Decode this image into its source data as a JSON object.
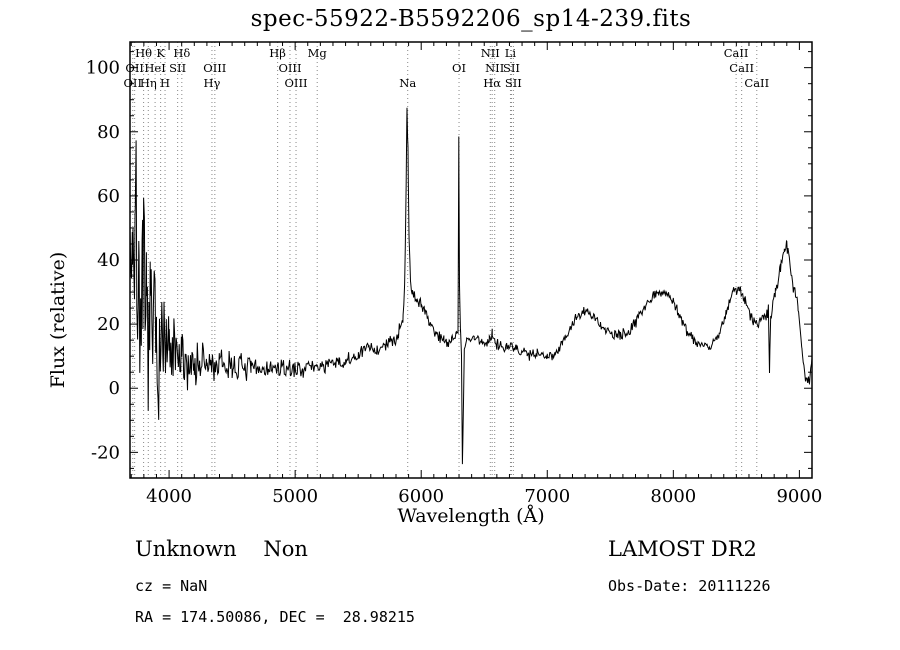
{
  "title": "spec-55922-B5592206_sp14-239.fits",
  "axes": {
    "xlabel": "Wavelength (Å)",
    "ylabel": "Flux (relative)",
    "x_range": [
      3690,
      9100
    ],
    "y_range": [
      -28,
      108
    ],
    "x_ticks": [
      4000,
      5000,
      6000,
      7000,
      8000,
      9000
    ],
    "y_ticks": [
      -20,
      0,
      20,
      40,
      60,
      80,
      100
    ]
  },
  "annotations": {
    "class_label": "Unknown    Non",
    "survey": "LAMOST DR2",
    "cz": "cz = NaN",
    "obs_date": "Obs-Date: 20111226",
    "radec": "RA = 174.50086, DEC =  28.98215"
  },
  "chart_data": {
    "type": "line",
    "title": "spec-55922-B5592206_sp14-239.fits",
    "xlabel": "Wavelength (Å)",
    "ylabel": "Flux (relative)",
    "xlim": [
      3690,
      9100
    ],
    "ylim": [
      -28,
      108
    ],
    "grid": false,
    "line_color": "#000000",
    "marker_line_color": "#888888",
    "sample_step": 6,
    "seed": 7,
    "spectral_lines": [
      {
        "label": "Hθ",
        "wavelength": 3798,
        "row": 0
      },
      {
        "label": "K",
        "wavelength": 3933,
        "row": 0
      },
      {
        "label": "Hδ",
        "wavelength": 4101,
        "row": 0
      },
      {
        "label": "Hβ",
        "wavelength": 4861,
        "row": 0
      },
      {
        "label": "Mg",
        "wavelength": 5175,
        "row": 0
      },
      {
        "label": "NII",
        "wavelength": 6548,
        "row": 0
      },
      {
        "label": "Li",
        "wavelength": 6708,
        "row": 0
      },
      {
        "label": "CaII",
        "wavelength": 8498,
        "row": 0
      },
      {
        "label": "OII",
        "wavelength": 3727,
        "row": 1
      },
      {
        "label": "HeI",
        "wavelength": 3889,
        "row": 1
      },
      {
        "label": "SII",
        "wavelength": 4068,
        "row": 1
      },
      {
        "label": "OIII",
        "wavelength": 4363,
        "row": 1
      },
      {
        "label": "OIII",
        "wavelength": 4959,
        "row": 1
      },
      {
        "label": "OI",
        "wavelength": 6300,
        "row": 1
      },
      {
        "label": "NII",
        "wavelength": 6583,
        "row": 1
      },
      {
        "label": "SII",
        "wavelength": 6716,
        "row": 1
      },
      {
        "label": "CaII",
        "wavelength": 8542,
        "row": 1
      },
      {
        "label": "OII",
        "wavelength": 3712,
        "row": 2
      },
      {
        "label": "Hη",
        "wavelength": 3835,
        "row": 2
      },
      {
        "label": "H",
        "wavelength": 3968,
        "row": 2
      },
      {
        "label": "Hγ",
        "wavelength": 4340,
        "row": 2
      },
      {
        "label": "OIII",
        "wavelength": 5007,
        "row": 2
      },
      {
        "label": "Na",
        "wavelength": 5893,
        "row": 2
      },
      {
        "label": "Hα",
        "wavelength": 6563,
        "row": 2
      },
      {
        "label": "SII",
        "wavelength": 6731,
        "row": 2
      },
      {
        "label": "CaII",
        "wavelength": 8662,
        "row": 2
      }
    ],
    "envelope_points": [
      [
        3690,
        45
      ],
      [
        3710,
        50
      ],
      [
        3730,
        45
      ],
      [
        3760,
        35
      ],
      [
        3790,
        25
      ],
      [
        3820,
        20
      ],
      [
        3850,
        18
      ],
      [
        3900,
        15
      ],
      [
        3950,
        12
      ],
      [
        4000,
        10
      ],
      [
        4100,
        8
      ],
      [
        4200,
        8
      ],
      [
        4300,
        7
      ],
      [
        4400,
        7
      ],
      [
        4500,
        7
      ],
      [
        4650,
        6
      ],
      [
        4800,
        6
      ],
      [
        5000,
        6
      ],
      [
        5200,
        7
      ],
      [
        5400,
        8
      ],
      [
        5500,
        10
      ],
      [
        5580,
        13
      ],
      [
        5650,
        12
      ],
      [
        5750,
        14
      ],
      [
        5820,
        17
      ],
      [
        5855,
        22
      ],
      [
        5870,
        35
      ],
      [
        5880,
        62
      ],
      [
        5887,
        87
      ],
      [
        5895,
        75
      ],
      [
        5903,
        48
      ],
      [
        5915,
        33
      ],
      [
        5930,
        30
      ],
      [
        5960,
        28
      ],
      [
        6000,
        26
      ],
      [
        6060,
        21
      ],
      [
        6120,
        17
      ],
      [
        6180,
        15
      ],
      [
        6240,
        15
      ],
      [
        6280,
        17
      ],
      [
        6292,
        18
      ],
      [
        6298,
        78
      ],
      [
        6304,
        32
      ],
      [
        6312,
        18
      ],
      [
        6320,
        10
      ],
      [
        6327,
        -24
      ],
      [
        6334,
        -8
      ],
      [
        6342,
        12
      ],
      [
        6360,
        15
      ],
      [
        6420,
        16
      ],
      [
        6480,
        14
      ],
      [
        6540,
        15
      ],
      [
        6563,
        17
      ],
      [
        6600,
        14
      ],
      [
        6680,
        13
      ],
      [
        6760,
        12
      ],
      [
        6840,
        11
      ],
      [
        6920,
        11
      ],
      [
        7000,
        10
      ],
      [
        7060,
        11
      ],
      [
        7120,
        14
      ],
      [
        7200,
        20
      ],
      [
        7280,
        24
      ],
      [
        7340,
        23
      ],
      [
        7420,
        20
      ],
      [
        7500,
        17
      ],
      [
        7580,
        16
      ],
      [
        7660,
        18
      ],
      [
        7740,
        24
      ],
      [
        7820,
        28
      ],
      [
        7880,
        30
      ],
      [
        7940,
        30
      ],
      [
        8000,
        27
      ],
      [
        8060,
        22
      ],
      [
        8120,
        17
      ],
      [
        8200,
        14
      ],
      [
        8280,
        13
      ],
      [
        8360,
        16
      ],
      [
        8420,
        24
      ],
      [
        8470,
        30
      ],
      [
        8520,
        31
      ],
      [
        8570,
        27
      ],
      [
        8620,
        22
      ],
      [
        8670,
        20
      ],
      [
        8720,
        22
      ],
      [
        8755,
        24
      ],
      [
        8763,
        6
      ],
      [
        8772,
        22
      ],
      [
        8810,
        30
      ],
      [
        8850,
        38
      ],
      [
        8880,
        43
      ],
      [
        8900,
        46
      ],
      [
        8920,
        40
      ],
      [
        8950,
        33
      ],
      [
        8990,
        25
      ],
      [
        9020,
        12
      ],
      [
        9050,
        3
      ],
      [
        9080,
        2
      ],
      [
        9100,
        8
      ]
    ],
    "noise_envelope": [
      [
        3690,
        60
      ],
      [
        3720,
        55
      ],
      [
        3760,
        48
      ],
      [
        3800,
        45
      ],
      [
        3850,
        40
      ],
      [
        3900,
        32
      ],
      [
        3950,
        26
      ],
      [
        4000,
        20
      ],
      [
        4100,
        15
      ],
      [
        4200,
        12
      ],
      [
        4300,
        10
      ],
      [
        4400,
        8
      ],
      [
        4500,
        7
      ],
      [
        4700,
        5
      ],
      [
        4900,
        4
      ],
      [
        5100,
        3.5
      ],
      [
        5300,
        3.5
      ],
      [
        5600,
        3.5
      ],
      [
        5850,
        3
      ],
      [
        5900,
        2.5
      ],
      [
        6000,
        3.5
      ],
      [
        6200,
        3
      ],
      [
        6330,
        1.5
      ],
      [
        6500,
        3
      ],
      [
        7000,
        2.5
      ],
      [
        7500,
        2.5
      ],
      [
        8000,
        2.5
      ],
      [
        8500,
        2.5
      ],
      [
        8800,
        3
      ],
      [
        9000,
        3
      ],
      [
        9100,
        2
      ]
    ]
  }
}
